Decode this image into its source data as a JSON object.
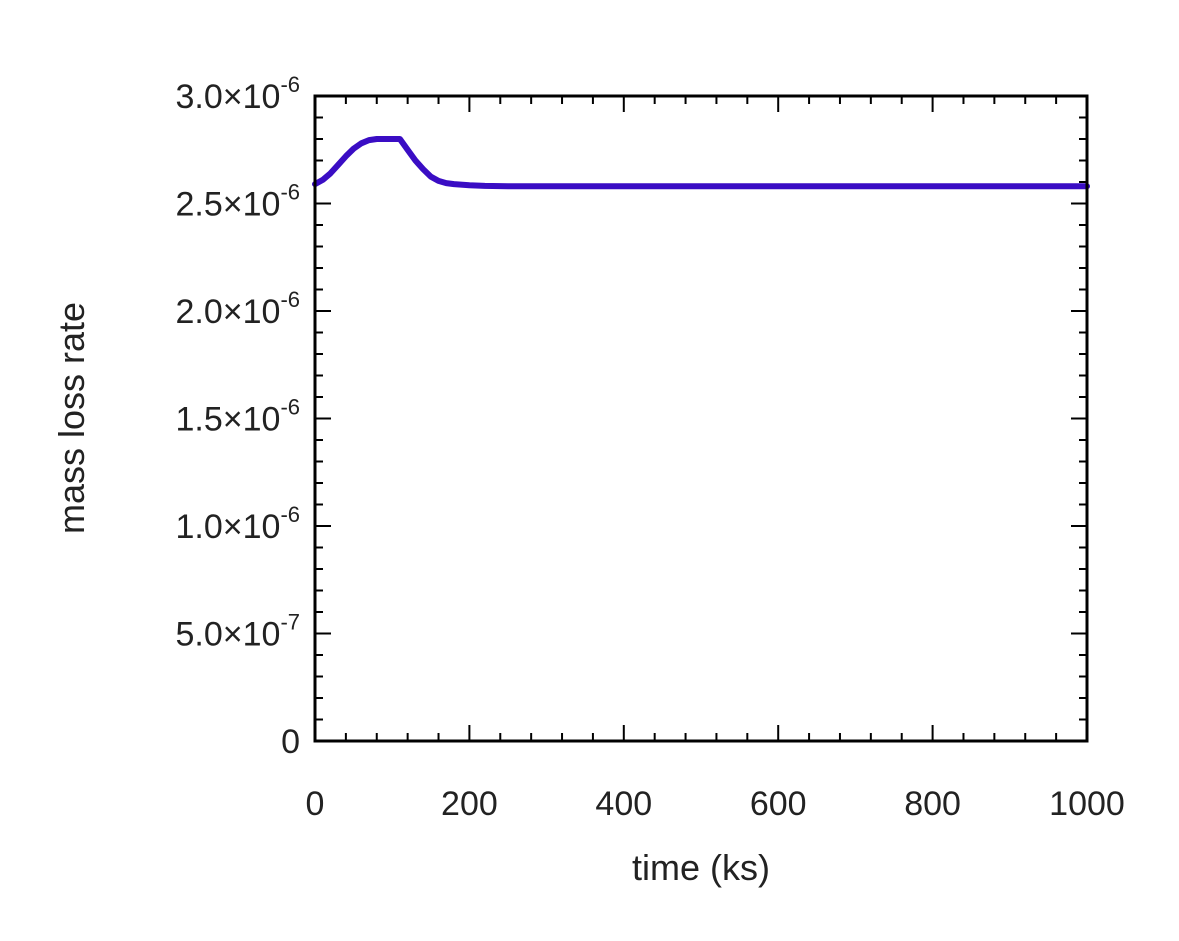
{
  "chart_data": {
    "type": "line",
    "title": "",
    "xlabel": "time (ks)",
    "ylabel": "mass loss rate",
    "xlim": [
      0,
      1000
    ],
    "ylim": [
      0,
      3e-06
    ],
    "grid": false,
    "legend": "none",
    "x_ticks": [
      {
        "value": 0,
        "label": "0"
      },
      {
        "value": 200,
        "label": "200"
      },
      {
        "value": 400,
        "label": "400"
      },
      {
        "value": 600,
        "label": "600"
      },
      {
        "value": 800,
        "label": "800"
      },
      {
        "value": 1000,
        "label": "1000"
      }
    ],
    "y_ticks": [
      {
        "value": 0,
        "mantissa": "0",
        "exponent": ""
      },
      {
        "value": 5e-07,
        "mantissa": "5.0×10",
        "exponent": "-7"
      },
      {
        "value": 1e-06,
        "mantissa": "1.0×10",
        "exponent": "-6"
      },
      {
        "value": 1.5e-06,
        "mantissa": "1.5×10",
        "exponent": "-6"
      },
      {
        "value": 2e-06,
        "mantissa": "2.0×10",
        "exponent": "-6"
      },
      {
        "value": 2.5e-06,
        "mantissa": "2.5×10",
        "exponent": "-6"
      },
      {
        "value": 3e-06,
        "mantissa": "3.0×10",
        "exponent": "-6"
      }
    ],
    "series": [
      {
        "color": "#3a0dc4",
        "x": [
          0,
          10,
          20,
          30,
          40,
          50,
          60,
          70,
          80,
          90,
          100,
          110,
          120,
          130,
          140,
          150,
          160,
          170,
          180,
          200,
          220,
          250,
          300,
          400,
          500,
          600,
          700,
          800,
          900,
          1000
        ],
        "y": [
          2.59e-06,
          2.61e-06,
          2.64e-06,
          2.68e-06,
          2.72e-06,
          2.755e-06,
          2.78e-06,
          2.795e-06,
          2.8e-06,
          2.8e-06,
          2.8e-06,
          2.8e-06,
          2.75e-06,
          2.7e-06,
          2.66e-06,
          2.625e-06,
          2.605e-06,
          2.595e-06,
          2.59e-06,
          2.585e-06,
          2.582e-06,
          2.58e-06,
          2.58e-06,
          2.58e-06,
          2.58e-06,
          2.58e-06,
          2.58e-06,
          2.58e-06,
          2.58e-06,
          2.58e-06
        ]
      }
    ]
  }
}
